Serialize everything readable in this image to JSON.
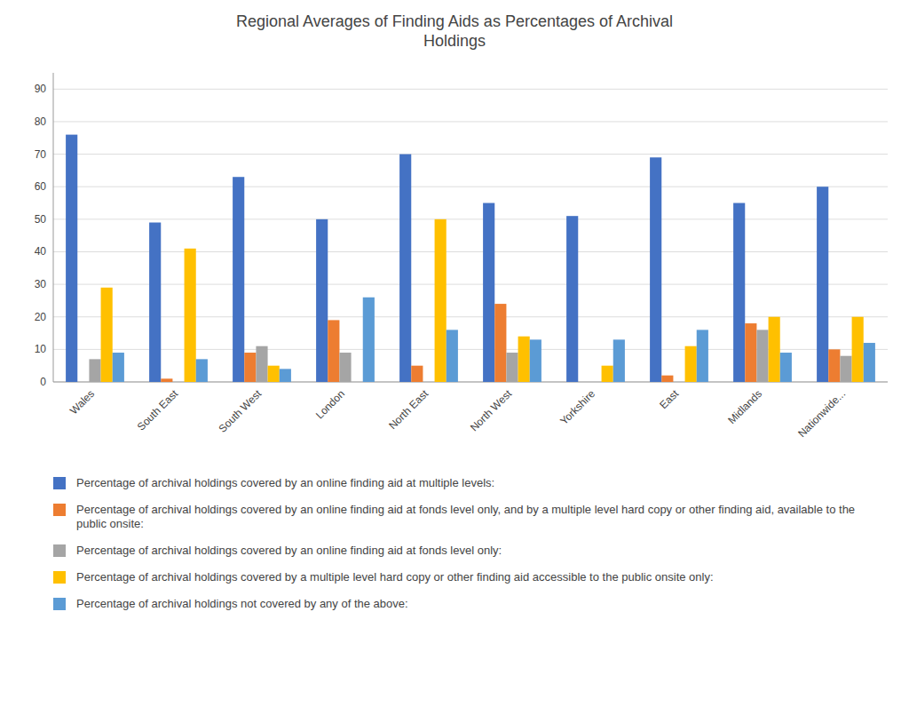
{
  "chart_data": {
    "type": "bar",
    "title": "Regional Averages of Finding Aids as Percentages of Archival\nHoldings",
    "categories": [
      "Wales",
      "South East",
      "South West",
      "London",
      "North East",
      "North West",
      "Yorkshire",
      "East",
      "Midlands",
      "Nationwide..."
    ],
    "series": [
      {
        "name": "Percentage of archival holdings covered by an online finding aid at multiple levels:",
        "color": "#4472C4",
        "values": [
          76,
          49,
          63,
          50,
          70,
          55,
          51,
          69,
          55,
          60
        ]
      },
      {
        "name": "Percentage of archival holdings covered by an online finding aid at fonds level only, and by a multiple level hard copy or other finding aid, available to the public onsite:",
        "color": "#ED7D31",
        "values": [
          0,
          1,
          9,
          19,
          5,
          24,
          0,
          2,
          18,
          10
        ]
      },
      {
        "name": "Percentage of archival holdings covered by an online finding aid at fonds level only:",
        "color": "#A5A5A5",
        "values": [
          7,
          0,
          11,
          9,
          0,
          9,
          0,
          0,
          16,
          8
        ]
      },
      {
        "name": "Percentage of archival holdings covered by a multiple level hard copy or other finding aid accessible to the public onsite only:",
        "color": "#FFC000",
        "values": [
          29,
          41,
          5,
          0,
          50,
          14,
          5,
          11,
          20,
          20
        ]
      },
      {
        "name": "Percentage of archival holdings not covered by any of the above:",
        "color": "#5B9BD5",
        "values": [
          9,
          7,
          4,
          26,
          16,
          13,
          13,
          16,
          9,
          12
        ]
      }
    ],
    "ylim": [
      0,
      95
    ],
    "yticks": [
      0,
      10,
      20,
      30,
      40,
      50,
      60,
      70,
      80,
      90
    ],
    "grid": true,
    "legend": "bottom"
  }
}
